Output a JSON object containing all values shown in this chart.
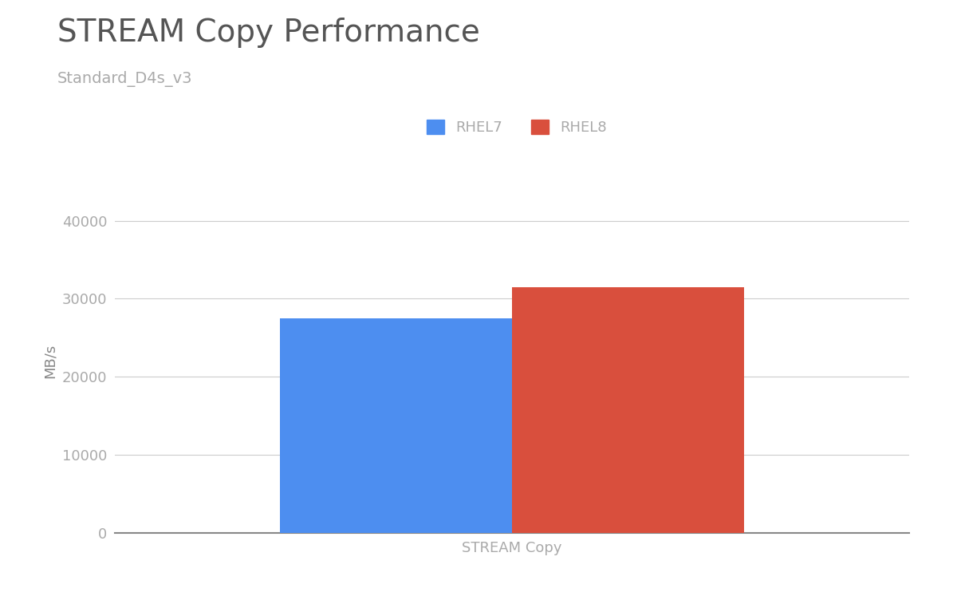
{
  "title": "STREAM Copy Performance",
  "subtitle": "Standard_D4s_v3",
  "xlabel": "STREAM Copy",
  "ylabel": "MB/s",
  "rhel7_value": 27500,
  "rhel8_value": 31500,
  "rhel7_color": "#4d8ef0",
  "rhel8_color": "#d94f3d",
  "ylim": [
    0,
    44000
  ],
  "yticks": [
    0,
    10000,
    20000,
    30000,
    40000
  ],
  "background_color": "#ffffff",
  "grid_color": "#cccccc",
  "title_color": "#555555",
  "subtitle_color": "#aaaaaa",
  "tick_color": "#aaaaaa",
  "label_color": "#888888",
  "title_fontsize": 28,
  "subtitle_fontsize": 14,
  "ylabel_fontsize": 13,
  "xlabel_fontsize": 13,
  "legend_fontsize": 13,
  "tick_fontsize": 13,
  "bar_width": 0.38
}
